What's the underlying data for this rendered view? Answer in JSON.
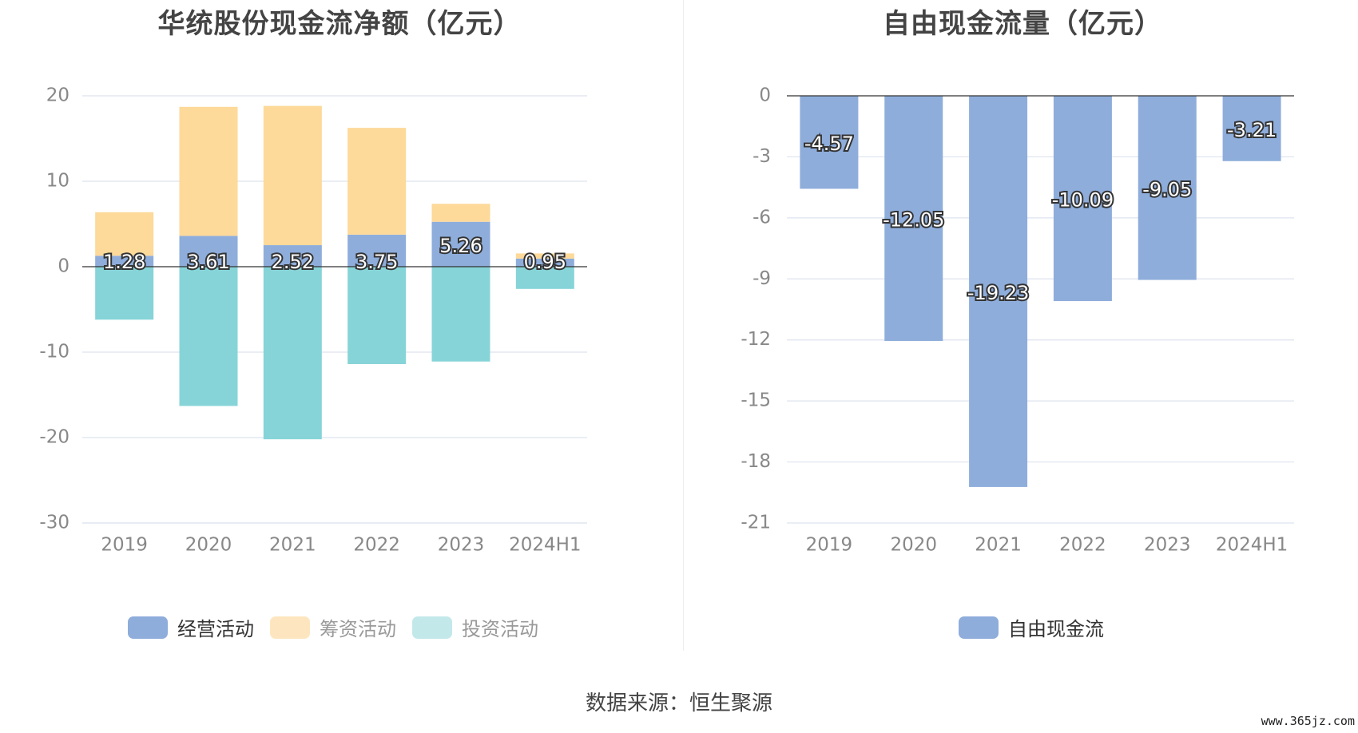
{
  "left_title": "华统股份现金流净额（亿元）",
  "right_title": "自由现金流量（亿元）",
  "source": "数据来源：恒生聚源",
  "watermark": "www.365jz.com",
  "colors": {
    "operating": "#8eaddb",
    "financing": "#fdd99a",
    "investing": "#86d4d8",
    "fcf": "#8eaddb",
    "grid": "#dde3ee",
    "axis": "#333333"
  },
  "legend_left": [
    "经营活动",
    "筹资活动",
    "投资活动"
  ],
  "legend_right": [
    "自由现金流"
  ],
  "chart_data": [
    {
      "type": "bar",
      "stacked": true,
      "title": "华统股份现金流净额（亿元）",
      "categories": [
        "2019",
        "2020",
        "2021",
        "2022",
        "2023",
        "2024H1"
      ],
      "ylim": [
        -30,
        20
      ],
      "yticks": [
        20,
        10,
        0,
        -10,
        -20,
        -30
      ],
      "grid": true,
      "legend_position": "bottom",
      "series": [
        {
          "name": "经营活动",
          "values": [
            1.28,
            3.61,
            2.52,
            3.75,
            5.26,
            0.95
          ],
          "labels": [
            "1.28",
            "3.61",
            "2.52",
            "3.75",
            "5.26",
            "0.95"
          ]
        },
        {
          "name": "筹资活动",
          "values": [
            5.1,
            15.1,
            16.3,
            12.5,
            2.1,
            0.6
          ]
        },
        {
          "name": "投资活动",
          "values": [
            -6.2,
            -16.3,
            -20.2,
            -11.4,
            -11.1,
            -2.6
          ]
        }
      ]
    },
    {
      "type": "bar",
      "title": "自由现金流量（亿元）",
      "categories": [
        "2019",
        "2020",
        "2021",
        "2022",
        "2023",
        "2024H1"
      ],
      "ylim": [
        -21,
        0
      ],
      "yticks": [
        0,
        -3,
        -6,
        -9,
        -12,
        -15,
        -18,
        -21
      ],
      "grid": true,
      "legend_position": "bottom",
      "series": [
        {
          "name": "自由现金流",
          "values": [
            -4.57,
            -12.05,
            -19.23,
            -10.09,
            -9.05,
            -3.21
          ],
          "labels": [
            "-4.57",
            "-12.05",
            "-19.23",
            "-10.09",
            "-9.05",
            "-3.21"
          ]
        }
      ]
    }
  ]
}
